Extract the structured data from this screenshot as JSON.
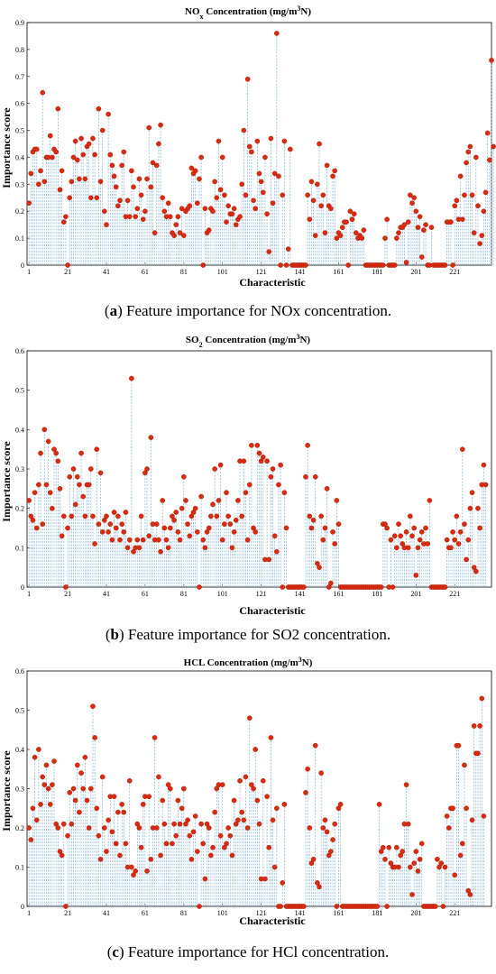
{
  "chart_data": [
    {
      "type": "scatter",
      "style": "stem",
      "title_main": "NO",
      "title_sub": "x",
      "title_rest": " Concentration (mg/m",
      "title_sup": "3",
      "title_end": "N)",
      "xlabel": "Characteristic",
      "ylabel": "Importance score",
      "xlim": [
        0,
        240
      ],
      "ylim": [
        0,
        0.9
      ],
      "xticks": [
        1,
        21,
        41,
        61,
        81,
        101,
        121,
        141,
        161,
        181,
        201,
        221
      ],
      "yticks": [
        0,
        0.1,
        0.2,
        0.3,
        0.4,
        0.5,
        0.6,
        0.7,
        0.8,
        0.9
      ],
      "grid": false,
      "marker_color": "#d92b10",
      "stem_color": "#7fb2dc",
      "caption_label": "a",
      "caption_text": " Feature importance for NOx concentration.",
      "values": [
        0.23,
        0.34,
        0.42,
        0.43,
        0.43,
        0.3,
        0.35,
        0.64,
        0.31,
        0.4,
        0.4,
        0.48,
        0.4,
        0.43,
        0.42,
        0.58,
        0.28,
        0.35,
        0.16,
        0.18,
        0.0,
        0.25,
        0.31,
        0.4,
        0.46,
        0.39,
        0.32,
        0.47,
        0.41,
        0.32,
        0.44,
        0.45,
        0.25,
        0.47,
        0.41,
        0.25,
        0.58,
        0.31,
        0.5,
        0.2,
        0.15,
        0.56,
        0.41,
        0.37,
        0.33,
        0.29,
        0.22,
        0.24,
        0.37,
        0.42,
        0.18,
        0.24,
        0.18,
        0.35,
        0.29,
        0.18,
        0.21,
        0.32,
        0.26,
        0.17,
        0.2,
        0.32,
        0.51,
        0.29,
        0.38,
        0.12,
        0.37,
        0.45,
        0.52,
        0.25,
        0.2,
        0.18,
        0.23,
        0.18,
        0.12,
        0.11,
        0.15,
        0.18,
        0.12,
        0.21,
        0.11,
        0.2,
        0.21,
        0.22,
        0.36,
        0.34,
        0.35,
        0.23,
        0.32,
        0.4,
        0.0,
        0.21,
        0.12,
        0.13,
        0.21,
        0.2,
        0.31,
        0.25,
        0.46,
        0.28,
        0.4,
        0.26,
        0.16,
        0.22,
        0.19,
        0.19,
        0.21,
        0.15,
        0.17,
        0.18,
        0.3,
        0.5,
        0.26,
        0.69,
        0.44,
        0.42,
        0.24,
        0.21,
        0.46,
        0.34,
        0.31,
        0.27,
        0.4,
        0.19,
        0.05,
        0.47,
        0.23,
        0.34,
        0.86,
        0.33,
        0.0,
        0.26,
        0.46,
        0.0,
        0.06,
        0.43,
        0.0,
        0.0,
        0.0,
        0.0,
        0.0,
        0.0,
        0.0,
        0.0,
        0.26,
        0.17,
        0.31,
        0.24,
        0.11,
        0.3,
        0.45,
        0.22,
        0.26,
        0.12,
        0.37,
        0.22,
        0.21,
        0.33,
        0.35,
        0.1,
        0.12,
        0.11,
        0.14,
        0.16,
        0.16,
        0.0,
        0.2,
        0.17,
        0.19,
        0.12,
        0.1,
        0.11,
        0.1,
        0.13,
        0.0,
        0.0,
        0.0,
        0.0,
        0.0,
        0.0,
        0.0,
        0.0,
        0.0,
        0.0,
        0.1,
        0.17,
        0.0,
        0.0,
        0.0,
        0.0,
        0.1,
        0.12,
        0.14,
        0.14,
        0.15,
        0.01,
        0.16,
        0.26,
        0.23,
        0.25,
        0.2,
        0.14,
        0.18,
        0.03,
        0.13,
        0.15,
        0.0,
        0.0,
        0.14,
        0.0,
        0.0,
        0.0,
        0.0,
        0.0,
        0.0,
        0.0,
        0.16,
        0.16,
        0.16,
        0.0,
        0.22,
        0.24,
        0.17,
        0.33,
        0.17,
        0.26,
        0.38,
        0.42,
        0.44,
        0.26,
        0.12,
        0.4,
        0.22,
        0.08,
        0.11,
        0.2,
        0.27,
        0.49,
        0.39,
        0.76,
        0.44
      ]
    },
    {
      "type": "scatter",
      "style": "stem",
      "title_main": "SO",
      "title_sub": "2",
      "title_rest": " Concentration (mg/m",
      "title_sup": "3",
      "title_end": "N)",
      "xlabel": "Characteristic",
      "ylabel": "Importance score",
      "xlim": [
        0,
        240
      ],
      "ylim": [
        0,
        0.6
      ],
      "xticks": [
        1,
        21,
        41,
        61,
        81,
        101,
        121,
        141,
        161,
        181,
        201,
        221
      ],
      "yticks": [
        0,
        0.1,
        0.2,
        0.3,
        0.4,
        0.5,
        0.6
      ],
      "grid": false,
      "marker_color": "#d92b10",
      "stem_color": "#7fb2dc",
      "caption_label": "b",
      "caption_text": " Feature importance for SO2 concentration.",
      "values": [
        0.22,
        0.18,
        0.17,
        0.24,
        0.15,
        0.26,
        0.34,
        0.16,
        0.4,
        0.26,
        0.37,
        0.24,
        0.2,
        0.35,
        0.34,
        0.32,
        0.25,
        0.13,
        0.18,
        0.0,
        0.15,
        0.28,
        0.18,
        0.3,
        0.21,
        0.28,
        0.26,
        0.34,
        0.23,
        0.18,
        0.26,
        0.26,
        0.3,
        0.18,
        0.11,
        0.35,
        0.16,
        0.29,
        0.14,
        0.17,
        0.18,
        0.14,
        0.16,
        0.12,
        0.19,
        0.15,
        0.18,
        0.12,
        0.16,
        0.14,
        0.19,
        0.1,
        0.12,
        0.53,
        0.09,
        0.1,
        0.12,
        0.1,
        0.18,
        0.12,
        0.29,
        0.3,
        0.13,
        0.38,
        0.16,
        0.12,
        0.16,
        0.12,
        0.09,
        0.22,
        0.15,
        0.12,
        0.1,
        0.15,
        0.18,
        0.17,
        0.19,
        0.14,
        0.12,
        0.2,
        0.28,
        0.22,
        0.16,
        0.13,
        0.18,
        0.19,
        0.2,
        0.14,
        0.0,
        0.23,
        0.12,
        0.1,
        0.14,
        0.15,
        0.18,
        0.21,
        0.3,
        0.18,
        0.22,
        0.31,
        0.12,
        0.16,
        0.24,
        0.18,
        0.16,
        0.1,
        0.14,
        0.17,
        0.22,
        0.32,
        0.18,
        0.32,
        0.24,
        0.12,
        0.26,
        0.36,
        0.15,
        0.14,
        0.36,
        0.34,
        0.32,
        0.33,
        0.07,
        0.32,
        0.07,
        0.28,
        0.3,
        0.13,
        0.09,
        0.26,
        0.31,
        0.0,
        0.24,
        0.15,
        0.0,
        0.0,
        0.0,
        0.0,
        0.0,
        0.0,
        0.0,
        0.0,
        0.0,
        0.28,
        0.36,
        0.18,
        0.15,
        0.17,
        0.28,
        0.06,
        0.05,
        0.18,
        0.12,
        0.15,
        0.25,
        0.0,
        0.01,
        0.14,
        0.11,
        0.22,
        0.16,
        0.0,
        0.0,
        0.0,
        0.0,
        0.0,
        0.0,
        0.0,
        0.0,
        0.0,
        0.0,
        0.0,
        0.0,
        0.0,
        0.0,
        0.0,
        0.0,
        0.0,
        0.0,
        0.0,
        0.0,
        0.0,
        0.0,
        0.16,
        0.16,
        0.15,
        0.0,
        0.12,
        0.0,
        0.13,
        0.1,
        0.16,
        0.13,
        0.11,
        0.1,
        0.14,
        0.1,
        0.18,
        0.13,
        0.15,
        0.03,
        0.1,
        0.12,
        0.14,
        0.11,
        0.15,
        0.11,
        0.22,
        0.0,
        0.0,
        0.0,
        0.0,
        0.0,
        0.0,
        0.0,
        0.0,
        0.12,
        0.1,
        0.1,
        0.14,
        0.12,
        0.18,
        0.11,
        0.14,
        0.35,
        0.16,
        0.07,
        0.12,
        0.2,
        0.24,
        0.05,
        0.04,
        0.2,
        0.15,
        0.26,
        0.31,
        0.26
      ]
    },
    {
      "type": "scatter",
      "style": "stem",
      "title_main": "HCL",
      "title_sub": "",
      "title_rest": " Concentration (mg/m",
      "title_sup": "3",
      "title_end": "N)",
      "xlabel": "Characteristic",
      "ylabel": "Importance score",
      "xlim": [
        0,
        240
      ],
      "ylim": [
        0,
        0.6
      ],
      "xticks": [
        1,
        21,
        41,
        61,
        81,
        101,
        121,
        141,
        161,
        181,
        201,
        221
      ],
      "yticks": [
        0,
        0.1,
        0.2,
        0.3,
        0.4,
        0.5,
        0.6
      ],
      "grid": false,
      "marker_color": "#d92b10",
      "stem_color": "#7fb2dc",
      "caption_label": "c",
      "caption_text": " Feature importance for HCl concentration.",
      "values": [
        0.2,
        0.17,
        0.25,
        0.38,
        0.22,
        0.4,
        0.26,
        0.33,
        0.31,
        0.36,
        0.3,
        0.26,
        0.31,
        0.37,
        0.21,
        0.2,
        0.14,
        0.13,
        0.21,
        0.0,
        0.18,
        0.29,
        0.21,
        0.3,
        0.27,
        0.36,
        0.24,
        0.34,
        0.3,
        0.38,
        0.27,
        0.2,
        0.3,
        0.51,
        0.43,
        0.25,
        0.18,
        0.12,
        0.33,
        0.2,
        0.14,
        0.22,
        0.28,
        0.19,
        0.28,
        0.16,
        0.24,
        0.13,
        0.26,
        0.24,
        0.16,
        0.1,
        0.32,
        0.1,
        0.08,
        0.09,
        0.21,
        0.2,
        0.15,
        0.26,
        0.28,
        0.09,
        0.28,
        0.12,
        0.2,
        0.43,
        0.2,
        0.33,
        0.13,
        0.27,
        0.21,
        0.16,
        0.31,
        0.3,
        0.16,
        0.21,
        0.18,
        0.27,
        0.21,
        0.25,
        0.3,
        0.21,
        0.22,
        0.18,
        0.12,
        0.19,
        0.23,
        0.14,
        0.0,
        0.21,
        0.16,
        0.07,
        0.21,
        0.2,
        0.13,
        0.15,
        0.24,
        0.3,
        0.31,
        0.18,
        0.31,
        0.15,
        0.16,
        0.2,
        0.18,
        0.13,
        0.27,
        0.21,
        0.22,
        0.32,
        0.24,
        0.22,
        0.33,
        0.2,
        0.48,
        0.31,
        0.3,
        0.4,
        0.27,
        0.21,
        0.07,
        0.32,
        0.07,
        0.28,
        0.15,
        0.43,
        0.22,
        0.1,
        0.25,
        0.0,
        0.0,
        0.06,
        0.26,
        0.0,
        0.0,
        0.0,
        0.0,
        0.0,
        0.0,
        0.0,
        0.0,
        0.0,
        0.0,
        0.29,
        0.35,
        0.2,
        0.11,
        0.12,
        0.41,
        0.06,
        0.05,
        0.34,
        0.2,
        0.22,
        0.19,
        0.13,
        0.14,
        0.17,
        0.21,
        0.0,
        0.25,
        0.26,
        0.0,
        0.0,
        0.0,
        0.0,
        0.0,
        0.0,
        0.0,
        0.0,
        0.0,
        0.0,
        0.0,
        0.0,
        0.0,
        0.0,
        0.0,
        0.0,
        0.0,
        0.0,
        0.0,
        0.26,
        0.14,
        0.15,
        0.12,
        0.0,
        0.15,
        0.11,
        0.1,
        0.1,
        0.15,
        0.1,
        0.13,
        0.14,
        0.21,
        0.31,
        0.21,
        0.1,
        0.03,
        0.11,
        0.14,
        0.09,
        0.12,
        0.16,
        0.0,
        0.0,
        0.0,
        0.0,
        0.0,
        0.0,
        0.0,
        0.12,
        0.1,
        0.11,
        0.0,
        0.1,
        0.23,
        0.2,
        0.25,
        0.25,
        0.08,
        0.41,
        0.41,
        0.13,
        0.16,
        0.36,
        0.25,
        0.04,
        0.03,
        0.22,
        0.46,
        0.39,
        0.39,
        0.46,
        0.53,
        0.23
      ]
    }
  ]
}
